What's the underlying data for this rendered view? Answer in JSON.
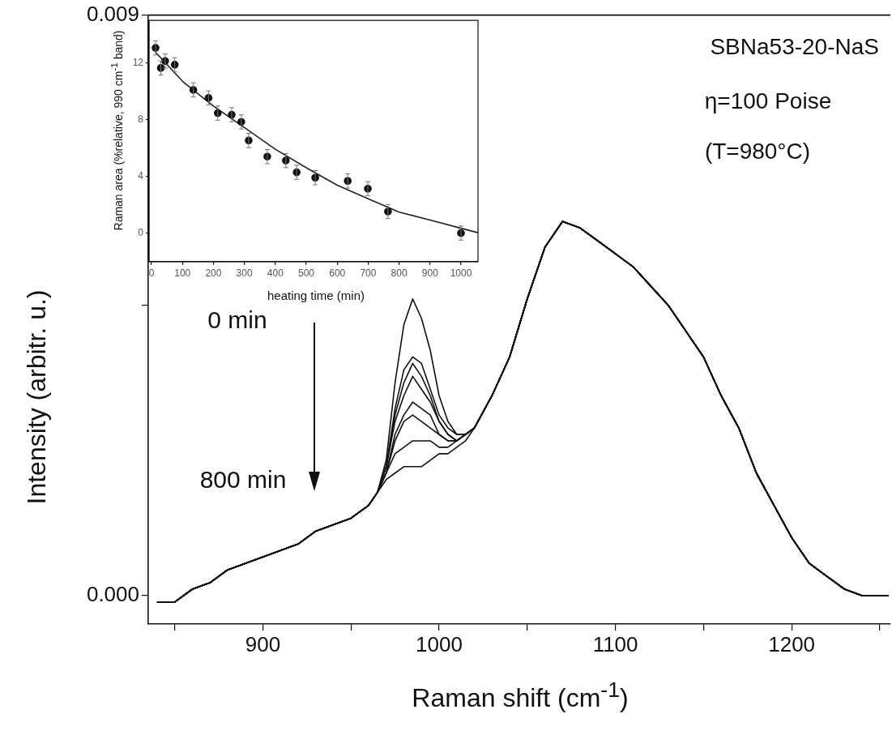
{
  "chart_data": [
    {
      "type": "line",
      "xlabel": "Raman shift (cm$^{-1}$)",
      "ylabel": "Intensity (arbitr. u.)",
      "annotations": [
        "SBNa53-20-NaS",
        "η=100 Poise",
        "(T=980°C)",
        "0 min",
        "800 min"
      ],
      "x": [
        840,
        850,
        860,
        870,
        880,
        890,
        900,
        910,
        920,
        930,
        940,
        950,
        960,
        965,
        970,
        975,
        980,
        985,
        990,
        995,
        1000,
        1005,
        1010,
        1015,
        1020,
        1030,
        1040,
        1050,
        1060,
        1070,
        1080,
        1090,
        1100,
        1110,
        1120,
        1130,
        1140,
        1150,
        1160,
        1170,
        1180,
        1190,
        1200,
        1210,
        1220,
        1230,
        1240,
        1250,
        1255
      ],
      "series": [
        {
          "color": "#111111",
          "values": [
            -0.0001,
            -0.0001,
            0.0001,
            0.0002,
            0.0004,
            0.0005,
            0.0006,
            0.0007,
            0.0008,
            0.001,
            0.0011,
            0.0012,
            0.0014,
            0.0016,
            0.0021,
            0.0033,
            0.0042,
            0.0046,
            0.0043,
            0.0038,
            0.0031,
            0.0027,
            0.0025,
            0.0025,
            0.0026,
            0.0031,
            0.0037,
            0.0046,
            0.0054,
            0.0058,
            0.0057,
            0.0055,
            0.0053,
            0.0051,
            0.0048,
            0.0045,
            0.0041,
            0.0037,
            0.0031,
            0.0026,
            0.0019,
            0.0014,
            0.0009,
            0.0005,
            0.0003,
            0.0001,
            0,
            0,
            0
          ]
        },
        {
          "color": "#111111",
          "values": [
            -0.0001,
            -0.0001,
            0.0001,
            0.0002,
            0.0004,
            0.0005,
            0.0006,
            0.0007,
            0.0008,
            0.001,
            0.0011,
            0.0012,
            0.0014,
            0.0016,
            0.002,
            0.0029,
            0.0035,
            0.0037,
            0.0036,
            0.0032,
            0.0028,
            0.0026,
            0.0025,
            0.0025,
            0.0026,
            0.0031,
            0.0037,
            0.0046,
            0.0054,
            0.0058,
            0.0057,
            0.0055,
            0.0053,
            0.0051,
            0.0048,
            0.0045,
            0.0041,
            0.0037,
            0.0031,
            0.0026,
            0.0019,
            0.0014,
            0.0009,
            0.0005,
            0.0003,
            0.0001,
            0,
            0,
            0
          ]
        },
        {
          "color": "#111111",
          "values": [
            -0.0001,
            -0.0001,
            0.0001,
            0.0002,
            0.0004,
            0.0005,
            0.0006,
            0.0007,
            0.0008,
            0.001,
            0.0011,
            0.0012,
            0.0014,
            0.0016,
            0.002,
            0.0028,
            0.0033,
            0.0036,
            0.0034,
            0.0031,
            0.0027,
            0.0025,
            0.0024,
            0.0025,
            0.0026,
            0.0031,
            0.0037,
            0.0046,
            0.0054,
            0.0058,
            0.0057,
            0.0055,
            0.0053,
            0.0051,
            0.0048,
            0.0045,
            0.0041,
            0.0037,
            0.0031,
            0.0026,
            0.0019,
            0.0014,
            0.0009,
            0.0005,
            0.0003,
            0.0001,
            0,
            0,
            0
          ]
        },
        {
          "color": "#111111",
          "values": [
            -0.0001,
            -0.0001,
            0.0001,
            0.0002,
            0.0004,
            0.0005,
            0.0006,
            0.0007,
            0.0008,
            0.001,
            0.0011,
            0.0012,
            0.0014,
            0.0016,
            0.002,
            0.0027,
            0.0031,
            0.0034,
            0.0032,
            0.003,
            0.0027,
            0.0025,
            0.0024,
            0.0025,
            0.0026,
            0.0031,
            0.0037,
            0.0046,
            0.0054,
            0.0058,
            0.0057,
            0.0055,
            0.0053,
            0.0051,
            0.0048,
            0.0045,
            0.0041,
            0.0037,
            0.0031,
            0.0026,
            0.0019,
            0.0014,
            0.0009,
            0.0005,
            0.0003,
            0.0001,
            0,
            0,
            0
          ]
        },
        {
          "color": "#111111",
          "values": [
            -0.0001,
            -0.0001,
            0.0001,
            0.0002,
            0.0004,
            0.0005,
            0.0006,
            0.0007,
            0.0008,
            0.001,
            0.0011,
            0.0012,
            0.0014,
            0.0016,
            0.0019,
            0.0025,
            0.0028,
            0.003,
            0.0029,
            0.0028,
            0.0025,
            0.0024,
            0.0024,
            0.0025,
            0.0026,
            0.0031,
            0.0037,
            0.0046,
            0.0054,
            0.0058,
            0.0057,
            0.0055,
            0.0053,
            0.0051,
            0.0048,
            0.0045,
            0.0041,
            0.0037,
            0.0031,
            0.0026,
            0.0019,
            0.0014,
            0.0009,
            0.0005,
            0.0003,
            0.0001,
            0,
            0,
            0
          ]
        },
        {
          "color": "#111111",
          "values": [
            -0.0001,
            -0.0001,
            0.0001,
            0.0002,
            0.0004,
            0.0005,
            0.0006,
            0.0007,
            0.0008,
            0.001,
            0.0011,
            0.0012,
            0.0014,
            0.0016,
            0.0019,
            0.0024,
            0.0027,
            0.0028,
            0.0027,
            0.0026,
            0.0025,
            0.0024,
            0.0024,
            0.0025,
            0.0026,
            0.0031,
            0.0037,
            0.0046,
            0.0054,
            0.0058,
            0.0057,
            0.0055,
            0.0053,
            0.0051,
            0.0048,
            0.0045,
            0.0041,
            0.0037,
            0.0031,
            0.0026,
            0.0019,
            0.0014,
            0.0009,
            0.0005,
            0.0003,
            0.0001,
            0,
            0,
            0
          ]
        },
        {
          "color": "#111111",
          "values": [
            -0.0001,
            -0.0001,
            0.0001,
            0.0002,
            0.0004,
            0.0005,
            0.0006,
            0.0007,
            0.0008,
            0.001,
            0.0011,
            0.0012,
            0.0014,
            0.0016,
            0.0019,
            0.0022,
            0.0023,
            0.0024,
            0.0024,
            0.0024,
            0.0023,
            0.0023,
            0.0024,
            0.0025,
            0.0026,
            0.0031,
            0.0037,
            0.0046,
            0.0054,
            0.0058,
            0.0057,
            0.0055,
            0.0053,
            0.0051,
            0.0048,
            0.0045,
            0.0041,
            0.0037,
            0.0031,
            0.0026,
            0.0019,
            0.0014,
            0.0009,
            0.0005,
            0.0003,
            0.0001,
            0,
            0,
            0
          ]
        },
        {
          "color": "#111111",
          "values": [
            -0.0001,
            -0.0001,
            0.0001,
            0.0002,
            0.0004,
            0.0005,
            0.0006,
            0.0007,
            0.0008,
            0.001,
            0.0011,
            0.0012,
            0.0014,
            0.0016,
            0.0018,
            0.0019,
            0.002,
            0.002,
            0.002,
            0.0021,
            0.0022,
            0.0022,
            0.0023,
            0.0024,
            0.0026,
            0.0031,
            0.0037,
            0.0046,
            0.0054,
            0.0058,
            0.0057,
            0.0055,
            0.0053,
            0.0051,
            0.0048,
            0.0045,
            0.0041,
            0.0037,
            0.0031,
            0.0026,
            0.0019,
            0.0014,
            0.0009,
            0.0005,
            0.0003,
            0.0001,
            0,
            0,
            0
          ]
        }
      ],
      "xlim": [
        835,
        1256
      ],
      "ylim": [
        -0.00044,
        0.009
      ],
      "xticks": [
        {
          "value": 850,
          "label": null
        },
        900,
        {
          "value": 950,
          "label": null
        },
        1000,
        {
          "value": 1050,
          "label": null
        },
        1100,
        {
          "value": 1150,
          "label": null
        },
        1200,
        {
          "value": 1250,
          "label": null
        }
      ],
      "yticks": [
        {
          "value": 0,
          "label": "0.000"
        },
        {
          "value": 0.0045,
          "label": null
        },
        0.009
      ]
    },
    {
      "type": "scatter",
      "xlabel": "heating time (min)",
      "ylabel": "Raman area (%relative, 990 cm$^{-1}$ band)",
      "series": [
        {
          "color": "#111111",
          "marker": "circle",
          "x": [
            13,
            30,
            44,
            75,
            135,
            184,
            214,
            259,
            290,
            314,
            374,
            434,
            469,
            529,
            634,
            699,
            764,
            1000
          ],
          "values": [
            13.06,
            11.64,
            12.13,
            11.87,
            10.09,
            9.52,
            8.45,
            8.34,
            7.83,
            6.52,
            5.38,
            5.1,
            4.27,
            3.89,
            3.66,
            3.11,
            1.5,
            -0.02
          ],
          "errors": [
            0.5,
            0.5,
            0.5,
            0.5,
            0.5,
            0.5,
            0.5,
            0.5,
            0.5,
            0.5,
            0.5,
            0.5,
            0.5,
            0.5,
            0.5,
            0.5,
            0.5,
            0.5
          ]
        },
        {
          "type": "line",
          "color": "#222222",
          "x": [
            13,
            100,
            200,
            300,
            400,
            500,
            600,
            700,
            800,
            900,
            1000,
            1055
          ],
          "values": [
            12.75,
            10.7,
            8.95,
            7.43,
            5.9,
            4.59,
            3.36,
            2.4,
            1.46,
            0.9,
            0.32,
            0
          ]
        }
      ],
      "xlim": [
        -8,
        1055
      ],
      "ylim": [
        -2.05,
        15
      ],
      "xticks": [
        0,
        100,
        200,
        300,
        400,
        500,
        600,
        700,
        800,
        900,
        1000
      ],
      "yticks": [
        0,
        4,
        8,
        12
      ]
    }
  ]
}
